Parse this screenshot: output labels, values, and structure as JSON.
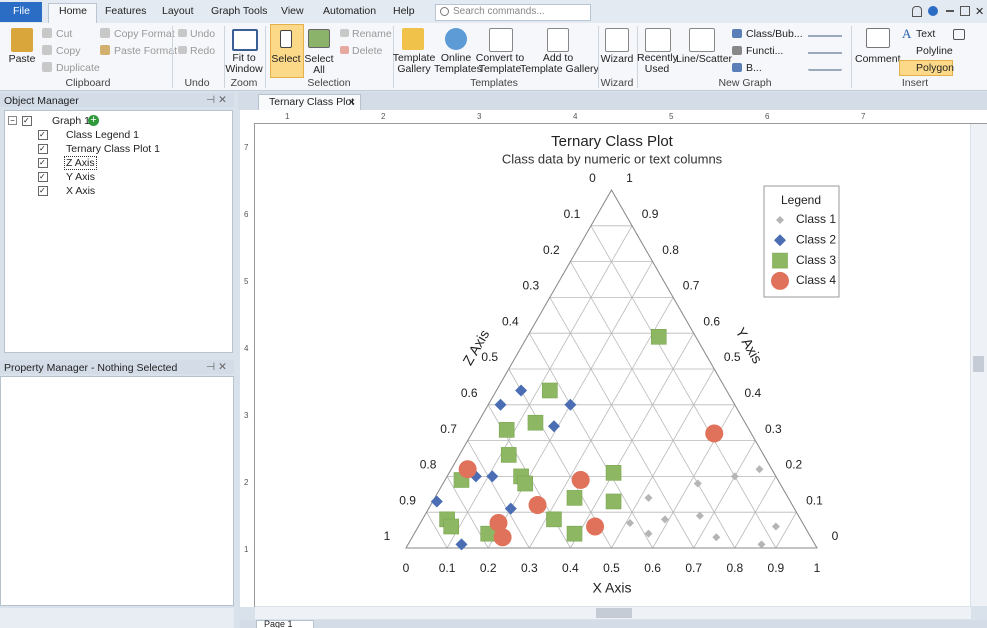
{
  "ribbon": {
    "tabs": [
      "File",
      "Home",
      "Features",
      "Layout",
      "Graph Tools",
      "View",
      "Automation",
      "Help"
    ],
    "search": "Search commands...",
    "groups": {
      "clipboard": {
        "label": "Clipboard",
        "items": [
          "Paste",
          "Cut",
          "Copy",
          "Duplicate",
          "Copy Format",
          "Paste Format"
        ]
      },
      "undo": {
        "label": "Undo",
        "items": [
          "Undo",
          "Redo"
        ]
      },
      "zoom": {
        "label": "Zoom",
        "items": [
          [
            "Fit to",
            "Window"
          ]
        ]
      },
      "selection": {
        "label": "Selection",
        "items": [
          "Select",
          [
            "Select",
            "All"
          ],
          "Rename",
          "Delete"
        ]
      },
      "templates": {
        "label": "Templates",
        "items": [
          [
            "Template",
            "Gallery"
          ],
          [
            "Online",
            "Templates"
          ],
          [
            "Convert to",
            "Template"
          ],
          [
            "Add to",
            "Template Gallery"
          ]
        ]
      },
      "wizard": {
        "label": "Wizard",
        "items": [
          "Wizard"
        ]
      },
      "new_graph": {
        "label": "New Graph",
        "items": [
          [
            "Recently",
            "Used"
          ],
          "Line/Scatter",
          "Class/Bub...",
          "Functi...",
          "B..."
        ]
      },
      "insert": {
        "label": "Insert",
        "items": [
          "Comment",
          "Text",
          "Polyline",
          "Polygon"
        ]
      }
    }
  },
  "object_manager": {
    "title": "Object Manager",
    "tree": [
      "Graph 1",
      "Class Legend 1",
      "Ternary Class Plot 1",
      "Z Axis",
      "Y Axis",
      "X Axis"
    ]
  },
  "property_manager": {
    "title": "Property Manager - Nothing Selected"
  },
  "document": {
    "tab": "Ternary Class Plot",
    "page_tab": "Page 1",
    "top_ruler": [
      "1",
      "2",
      "3",
      "4",
      "5",
      "6",
      "7"
    ],
    "left_ruler": [
      "7",
      "6",
      "5",
      "4",
      "3",
      "2",
      "1"
    ]
  },
  "chart_data": {
    "type": "ternary",
    "title": "Ternary Class Plot",
    "subtitle": "Class data by numeric or text columns",
    "xlabel": "X Axis",
    "ylabel": "Y Axis",
    "zlabel": "Z Axis",
    "xlim": [
      0,
      1
    ],
    "ylim": [
      0,
      1
    ],
    "zlim": [
      0,
      1
    ],
    "xticks": [
      0,
      0.1,
      0.2,
      0.3,
      0.4,
      0.5,
      0.6,
      0.7,
      0.8,
      0.9,
      1
    ],
    "yticks": [
      0,
      0.1,
      0.2,
      0.3,
      0.4,
      0.5,
      0.6,
      0.7,
      0.8,
      0.9,
      1
    ],
    "zticks": [
      0,
      0.1,
      0.2,
      0.3,
      0.4,
      0.5,
      0.6,
      0.7,
      0.8,
      0.9,
      1
    ],
    "grid": true,
    "legend": {
      "title": "Legend",
      "position": "upper right"
    },
    "series": [
      {
        "name": "Class 1",
        "color": "#b5b5b5",
        "marker": "small-diamond",
        "x": [
          0.52,
          0.51,
          0.57,
          0.59,
          0.62,
          0.7,
          0.75,
          0.87,
          0.86,
          0.74,
          0.67
        ],
        "y": [
          0.14,
          0.07,
          0.04,
          0.08,
          0.18,
          0.2,
          0.22,
          0.06,
          0.01,
          0.03,
          0.09
        ],
        "z": [
          0.34,
          0.42,
          0.39,
          0.33,
          0.2,
          0.1,
          0.03,
          0.07,
          0.13,
          0.23,
          0.24
        ]
      },
      {
        "name": "Class 2",
        "color": "#4a6db3",
        "marker": "diamond",
        "x": [
          0.06,
          0.03,
          0.2,
          0.19,
          0.07,
          0.11,
          0.01,
          0.2,
          0.13
        ],
        "y": [
          0.44,
          0.4,
          0.4,
          0.34,
          0.2,
          0.2,
          0.13,
          0.11,
          0.01
        ],
        "z": [
          0.5,
          0.57,
          0.4,
          0.47,
          0.73,
          0.69,
          0.86,
          0.69,
          0.86
        ]
      },
      {
        "name": "Class 3",
        "color": "#8db762",
        "marker": "square",
        "x": [
          0.32,
          0.13,
          0.14,
          0.08,
          0.12,
          0.04,
          0.18,
          0.2,
          0.4,
          0.34,
          0.44,
          0.06,
          0.08,
          0.32,
          0.39,
          0.18
        ],
        "y": [
          0.59,
          0.44,
          0.35,
          0.33,
          0.26,
          0.19,
          0.2,
          0.18,
          0.21,
          0.14,
          0.13,
          0.08,
          0.06,
          0.08,
          0.04,
          0.04
        ],
        "z": [
          0.09,
          0.43,
          0.51,
          0.59,
          0.62,
          0.77,
          0.62,
          0.62,
          0.39,
          0.52,
          0.43,
          0.86,
          0.86,
          0.6,
          0.57,
          0.78
        ]
      },
      {
        "name": "Class 4",
        "color": "#e0715a",
        "marker": "circle",
        "x": [
          0.59,
          0.04,
          0.33,
          0.26,
          0.19,
          0.22,
          0.43
        ],
        "y": [
          0.32,
          0.22,
          0.19,
          0.12,
          0.07,
          0.03,
          0.06
        ],
        "z": [
          0.09,
          0.74,
          0.48,
          0.62,
          0.74,
          0.75,
          0.51
        ]
      }
    ]
  }
}
